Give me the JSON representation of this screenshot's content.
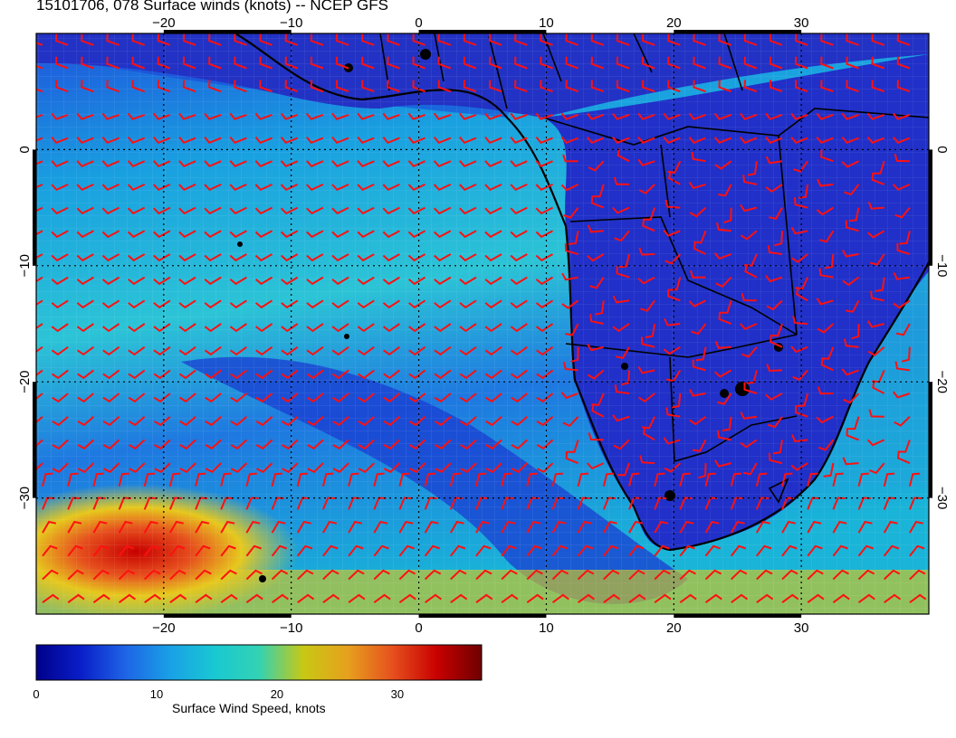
{
  "title": "15101706, 078 Surface winds (knots) -- NCEP GFS",
  "map": {
    "lon_range": [
      -30,
      40
    ],
    "lat_range": [
      -40,
      10
    ],
    "lon_ticks": [
      "-20",
      "-10",
      "0",
      "10",
      "20",
      "30"
    ],
    "lat_ticks": [
      "0",
      "-10",
      "-20",
      "-30"
    ],
    "grid_lines": "dotted",
    "land_color": "#2030c8",
    "barb_color": "#ff0000",
    "coast_color": "#000000"
  },
  "colorbar": {
    "ticks": [
      "0",
      "10",
      "20",
      "30"
    ],
    "label": "Surface Wind Speed, knots",
    "range": [
      0,
      37
    ],
    "colors": [
      "#00008a",
      "#0a1ec8",
      "#1e64e6",
      "#19a0e6",
      "#19c8d2",
      "#32d2b4",
      "#c8c814",
      "#e6a01e",
      "#e6501e",
      "#c80000",
      "#6e0000"
    ]
  }
}
